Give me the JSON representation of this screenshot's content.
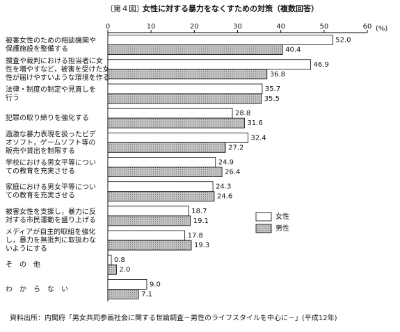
{
  "chart_data": {
    "type": "bar",
    "orientation": "horizontal",
    "figure_label": "〔第４図〕",
    "title": "女性に対する暴力をなくすための対策（複数回答）",
    "x_unit": "(%)",
    "categories": [
      [
        "被害女性のための相談機関や",
        "保護施設を整備する"
      ],
      [
        "捜査や裁判における担当者に女",
        "性を増やすなど，被害を受けた女",
        "性が届けやすいような環境を作る"
      ],
      [
        "法律・制度の制定や見直しを",
        "行う"
      ],
      [
        "犯罪の取り締りを強化する"
      ],
      [
        "過激な暴力表現を扱ったビデ",
        "オソフト，ゲームソフト等の",
        "販売や貸出を制限する"
      ],
      [
        "学校における男女平等につい",
        "ての教育を充実させる"
      ],
      [
        "家庭における男女平等につい",
        "ての教育を充実させる"
      ],
      [
        "被害女性を支援し，暴力に反",
        "対する市民運動を盛り上げる"
      ],
      [
        "メディアが自主的取組を強化",
        "し，暴力を無批判に取扱わな",
        "いようにする"
      ],
      [
        "そ　の　他"
      ],
      [
        "わ　か　ら　な　い"
      ]
    ],
    "series": [
      {
        "name": "女性",
        "color": "#ffffff",
        "values": [
          52.0,
          46.9,
          35.7,
          28.8,
          32.4,
          24.9,
          24.3,
          18.7,
          17.8,
          0.8,
          9.0
        ],
        "value_labels": [
          "52.0",
          "46.9",
          "35.7",
          "28.8",
          "32.4",
          "24.9",
          "24.3",
          "18.7",
          "17.8",
          "0.8",
          "9.0"
        ]
      },
      {
        "name": "男性",
        "color": "#c4c4c4",
        "values": [
          40.4,
          36.8,
          35.5,
          31.6,
          27.2,
          26.4,
          24.6,
          19.1,
          19.3,
          2.0,
          7.1
        ],
        "value_labels": [
          "40.4",
          "36.8",
          "35.5",
          "31.6",
          "27.2",
          "26.4",
          "24.6",
          "19.1",
          "19.3",
          "2.0",
          "7.1"
        ]
      }
    ],
    "xlim": [
      0,
      60
    ],
    "xticks": [
      0,
      10,
      20,
      30,
      40,
      50,
      60
    ],
    "legend": "right",
    "source": "資料出所：内閣府「男女共同参画社会に関する世論調査－男性のライフスタイルを中心に－」(平成12年)"
  }
}
